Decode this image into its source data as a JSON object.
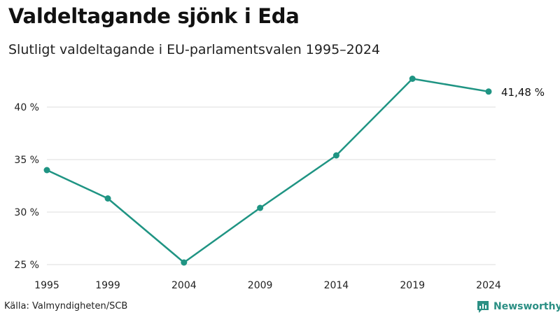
{
  "header": {
    "title": "Valdeltagande sjönk i Eda",
    "subtitle": "Slutligt valdeltagande i EU-parlamentsvalen 1995–2024"
  },
  "footer": {
    "source": "Källa: Valmyndigheten/SCB",
    "brand": "Newsworthy"
  },
  "colors": {
    "line": "#1f9483",
    "grid": "#dddddd",
    "brand": "#2b8f84"
  },
  "chart_data": {
    "type": "line",
    "title": "Valdeltagande sjönk i Eda",
    "subtitle": "Slutligt valdeltagande i EU-parlamentsvalen 1995–2024",
    "xlabel": "",
    "ylabel": "",
    "x": [
      1995,
      1999,
      2004,
      2009,
      2014,
      2019,
      2024
    ],
    "series": [
      {
        "name": "Valdeltagande",
        "values": [
          34.0,
          31.3,
          25.2,
          30.4,
          35.4,
          42.7,
          41.48
        ]
      }
    ],
    "ylim": [
      25,
      43
    ],
    "xlim": [
      1995,
      2024
    ],
    "yticks": [
      25,
      30,
      35,
      40
    ],
    "ytick_labels": [
      "25 %",
      "30 %",
      "35 %",
      "40 %"
    ],
    "xtick_labels": [
      "1995",
      "1999",
      "2004",
      "2009",
      "2014",
      "2019",
      "2024"
    ],
    "end_label": "41,48 %",
    "grid": true,
    "legend": "none"
  }
}
